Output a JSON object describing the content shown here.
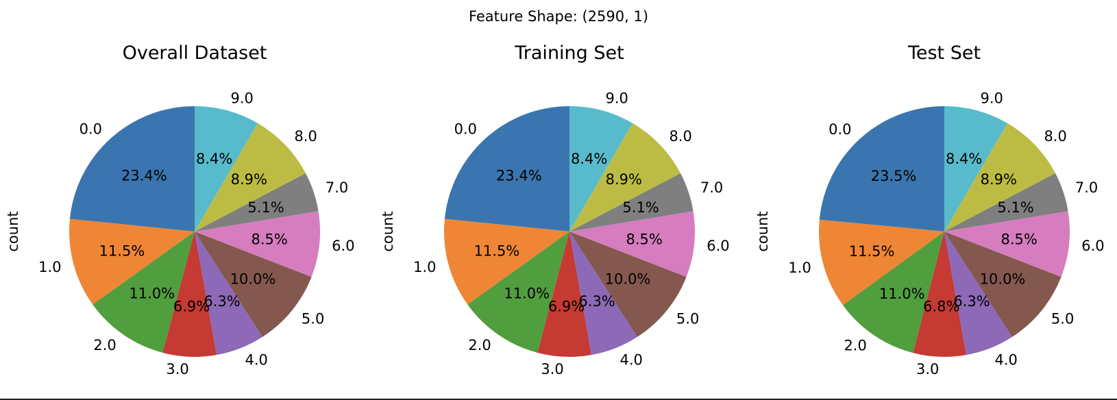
{
  "suptitle": "Feature Shape: (2590, 1)",
  "chart_data": [
    {
      "type": "pie",
      "title": "Overall Dataset",
      "ylabel": "count",
      "startangle": 90,
      "counterclock": true,
      "slices": [
        {
          "label": "0.0",
          "value": 23.4,
          "pct_label": "23.4%",
          "color": "#3a75af"
        },
        {
          "label": "1.0",
          "value": 11.5,
          "pct_label": "11.5%",
          "color": "#ef8636"
        },
        {
          "label": "2.0",
          "value": 11.0,
          "pct_label": "11.0%",
          "color": "#519e3e"
        },
        {
          "label": "3.0",
          "value": 6.9,
          "pct_label": "6.9%",
          "color": "#c53a32"
        },
        {
          "label": "4.0",
          "value": 6.3,
          "pct_label": "6.3%",
          "color": "#8d69b8"
        },
        {
          "label": "5.0",
          "value": 10.0,
          "pct_label": "10.0%",
          "color": "#84584e"
        },
        {
          "label": "6.0",
          "value": 8.5,
          "pct_label": "8.5%",
          "color": "#d57dbf"
        },
        {
          "label": "7.0",
          "value": 5.1,
          "pct_label": "5.1%",
          "color": "#7f7f7f"
        },
        {
          "label": "8.0",
          "value": 8.9,
          "pct_label": "8.9%",
          "color": "#bcbc45"
        },
        {
          "label": "9.0",
          "value": 8.4,
          "pct_label": "8.4%",
          "color": "#58bbcc"
        }
      ]
    },
    {
      "type": "pie",
      "title": "Training Set",
      "ylabel": "count",
      "startangle": 90,
      "counterclock": true,
      "slices": [
        {
          "label": "0.0",
          "value": 23.4,
          "pct_label": "23.4%",
          "color": "#3a75af"
        },
        {
          "label": "1.0",
          "value": 11.5,
          "pct_label": "11.5%",
          "color": "#ef8636"
        },
        {
          "label": "2.0",
          "value": 11.0,
          "pct_label": "11.0%",
          "color": "#519e3e"
        },
        {
          "label": "3.0",
          "value": 6.9,
          "pct_label": "6.9%",
          "color": "#c53a32"
        },
        {
          "label": "4.0",
          "value": 6.3,
          "pct_label": "6.3%",
          "color": "#8d69b8"
        },
        {
          "label": "5.0",
          "value": 10.0,
          "pct_label": "10.0%",
          "color": "#84584e"
        },
        {
          "label": "6.0",
          "value": 8.5,
          "pct_label": "8.5%",
          "color": "#d57dbf"
        },
        {
          "label": "7.0",
          "value": 5.1,
          "pct_label": "5.1%",
          "color": "#7f7f7f"
        },
        {
          "label": "8.0",
          "value": 8.9,
          "pct_label": "8.9%",
          "color": "#bcbc45"
        },
        {
          "label": "9.0",
          "value": 8.4,
          "pct_label": "8.4%",
          "color": "#58bbcc"
        }
      ]
    },
    {
      "type": "pie",
      "title": "Test Set",
      "ylabel": "count",
      "startangle": 90,
      "counterclock": true,
      "slices": [
        {
          "label": "0.0",
          "value": 23.5,
          "pct_label": "23.5%",
          "color": "#3a75af"
        },
        {
          "label": "1.0",
          "value": 11.5,
          "pct_label": "11.5%",
          "color": "#ef8636"
        },
        {
          "label": "2.0",
          "value": 11.0,
          "pct_label": "11.0%",
          "color": "#519e3e"
        },
        {
          "label": "3.0",
          "value": 6.8,
          "pct_label": "6.8%",
          "color": "#c53a32"
        },
        {
          "label": "4.0",
          "value": 6.3,
          "pct_label": "6.3%",
          "color": "#8d69b8"
        },
        {
          "label": "5.0",
          "value": 10.0,
          "pct_label": "10.0%",
          "color": "#84584e"
        },
        {
          "label": "6.0",
          "value": 8.5,
          "pct_label": "8.5%",
          "color": "#d57dbf"
        },
        {
          "label": "7.0",
          "value": 5.1,
          "pct_label": "5.1%",
          "color": "#7f7f7f"
        },
        {
          "label": "8.0",
          "value": 8.9,
          "pct_label": "8.9%",
          "color": "#bcbc45"
        },
        {
          "label": "9.0",
          "value": 8.4,
          "pct_label": "8.4%",
          "color": "#58bbcc"
        }
      ]
    }
  ]
}
